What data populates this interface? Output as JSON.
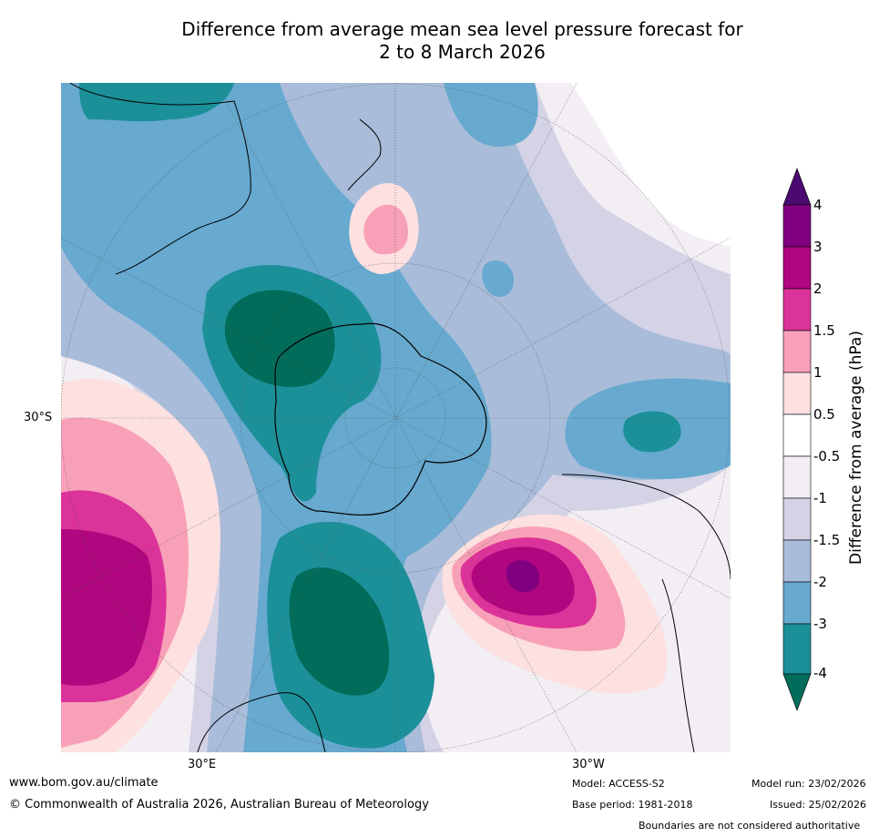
{
  "title": {
    "line1": "Difference from average mean sea level pressure forecast for",
    "line2": "2 to 8 March 2026"
  },
  "map": {
    "projection": "south-polar-stereographic",
    "lat_label": "30°S",
    "lon_labels": [
      "30°E",
      "30°W"
    ],
    "land_outline_color": "#000000",
    "grid_color": "#555555"
  },
  "colorbar": {
    "title": "Difference from average (hPa)",
    "tick_labels": [
      "4",
      "3",
      "2",
      "1.5",
      "1",
      "0.5",
      "-0.5",
      "-1",
      "-1.5",
      "-2",
      "-3",
      "-4"
    ],
    "colors": {
      "above_4": "#4b0a72",
      "3_to_4": "#800080",
      "2_to_3": "#b0067f",
      "1.5_to_2": "#db3399",
      "1_to_1.5": "#f8a0b8",
      "0.5_to_1": "#fde0e0",
      "-0.5_to_0.5": "#ffffff",
      "-1_to_-0.5": "#f2eef4",
      "-1.5_to_-1": "#d4d3e6",
      "-2_to_-1.5": "#a9bcd9",
      "-3_to_-2": "#67a9cf",
      "-4_to_-3": "#1c9099",
      "below_-4": "#016c59"
    }
  },
  "footer": {
    "url": "www.bom.gov.au/climate",
    "copyright": "© Commonwealth of Australia 2026, Australian Bureau of Meteorology",
    "model": "Model: ACCESS-S2",
    "base_period": "Base period: 1981-2018",
    "model_run": "Model run: 23/02/2026",
    "issued": "Issued: 25/02/2026",
    "disclaimer": "Boundaries are not considered authoritative"
  }
}
